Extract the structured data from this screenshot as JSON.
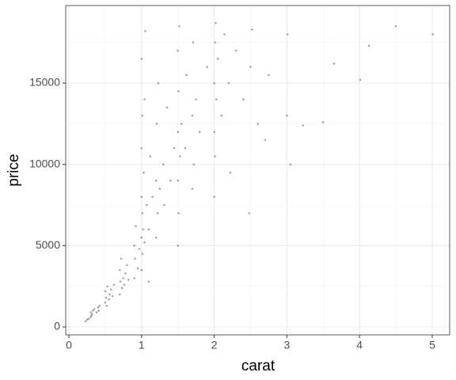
{
  "chart_data": {
    "type": "scatter",
    "x_label": "carat",
    "y_label": "price",
    "xlim": [
      -0.044,
      5.24
    ],
    "ylim": [
      -487,
      19773
    ],
    "xticks": [
      0,
      1,
      2,
      3,
      4,
      5
    ],
    "yticks": [
      0,
      5000,
      10000,
      15000
    ],
    "grid": true,
    "color": "#000000",
    "x": [
      0.23,
      0.25,
      0.27,
      0.3,
      0.3,
      0.31,
      0.32,
      0.33,
      0.35,
      0.38,
      0.4,
      0.41,
      0.42,
      0.5,
      0.5,
      0.51,
      0.52,
      0.53,
      0.55,
      0.56,
      0.58,
      0.6,
      0.62,
      0.7,
      0.7,
      0.71,
      0.72,
      0.73,
      0.75,
      0.76,
      0.78,
      0.8,
      0.82,
      0.9,
      0.9,
      0.91,
      0.92,
      0.95,
      0.97,
      1.0,
      1.0,
      1.0,
      1.0,
      1.0,
      1.01,
      1.01,
      1.01,
      1.02,
      1.03,
      1.04,
      1.05,
      1.07,
      1.1,
      1.12,
      1.15,
      1.2,
      1.2,
      1.21,
      1.22,
      1.23,
      1.25,
      1.3,
      1.31,
      1.35,
      1.4,
      1.45,
      1.5,
      1.5,
      1.5,
      1.5,
      1.51,
      1.51,
      1.52,
      1.53,
      1.55,
      1.6,
      1.62,
      1.7,
      1.7,
      1.71,
      1.72,
      1.75,
      1.8,
      1.9,
      2.0,
      2.0,
      2.0,
      2.01,
      2.01,
      2.02,
      2.03,
      2.05,
      2.1,
      2.14,
      2.2,
      2.22,
      2.3,
      2.4,
      2.5,
      2.52,
      2.6,
      2.75,
      3.0,
      3.01,
      3.05,
      3.22,
      3.5,
      3.65,
      4.01,
      4.13,
      4.5,
      5.01,
      2.48,
      2.7,
      1.1,
      1.04
    ],
    "y": [
      350,
      450,
      500,
      600,
      900,
      700,
      800,
      1000,
      1100,
      900,
      1200,
      1000,
      1300,
      1500,
      2200,
      1800,
      1300,
      2500,
      1700,
      2000,
      2300,
      1900,
      2600,
      2000,
      3500,
      2800,
      4200,
      2400,
      3000,
      2600,
      3300,
      3800,
      2900,
      3000,
      5000,
      4200,
      6200,
      3600,
      4800,
      3500,
      5500,
      8000,
      11000,
      16500,
      4500,
      7000,
      13000,
      6000,
      9500,
      5200,
      18200,
      7500,
      6000,
      10500,
      8000,
      5500,
      9000,
      12500,
      7000,
      15000,
      8500,
      10000,
      7500,
      13500,
      9000,
      11000,
      5000,
      9000,
      12000,
      17000,
      7000,
      14500,
      18500,
      10500,
      12500,
      11000,
      15500,
      8500,
      13000,
      17500,
      10000,
      14000,
      12000,
      16000,
      8000,
      12000,
      15000,
      17500,
      10500,
      18700,
      14000,
      16500,
      13000,
      18000,
      15000,
      9500,
      17000,
      14000,
      16000,
      18300,
      12500,
      15500,
      13000,
      18000,
      10000,
      12400,
      12600,
      16200,
      15200,
      17300,
      18500,
      18000,
      7000,
      11500,
      2800,
      14000
    ]
  }
}
